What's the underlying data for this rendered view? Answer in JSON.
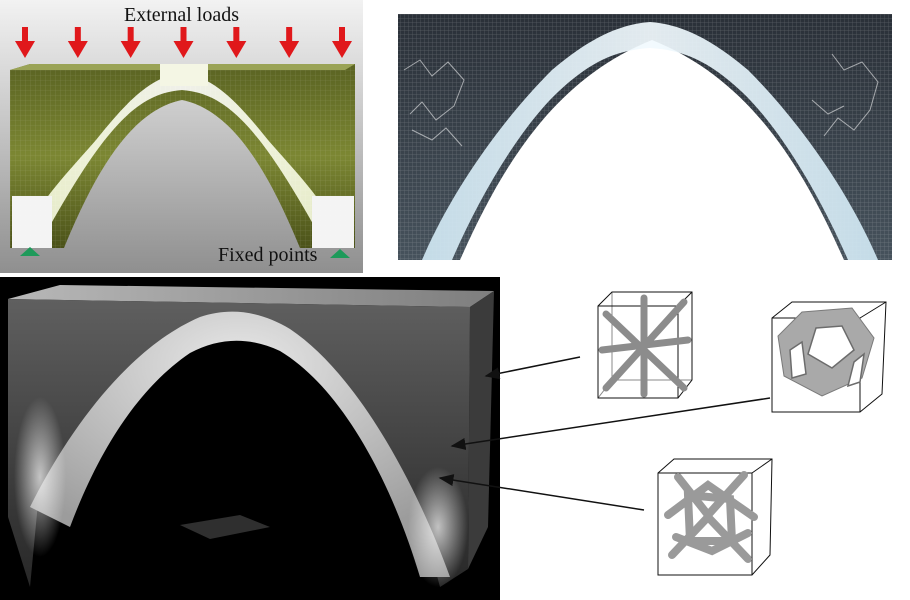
{
  "figure": {
    "labels": {
      "external_loads": "External loads",
      "fixed_points": "Fixed points"
    },
    "colors": {
      "load_arrow": "#e0181b",
      "fixed_support": "#1e9a5a",
      "material_high_density": "#eef5c0",
      "material_mid_density": "#6f7a2c",
      "print_highlight": "#d8ecf7",
      "render_background": "#000000"
    },
    "load_arrow_count": 7,
    "fixed_point_count": 2,
    "panels": [
      "simulation-topology-panel",
      "printed-bridge-photo-panel",
      "density-render-panel",
      "microstructure-cells"
    ],
    "microstructure_cell_count": 3
  }
}
